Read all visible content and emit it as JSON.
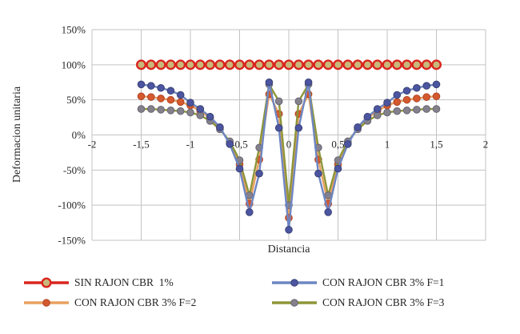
{
  "chart_data": {
    "type": "line",
    "title": "",
    "xlabel": "Distancia",
    "ylabel": "Deformacion unitaria",
    "xlim": [
      -2,
      2
    ],
    "ylim": [
      -150,
      150
    ],
    "grid": true,
    "legend_position": "bottom",
    "x_ticks": [
      {
        "value": -2,
        "label": "-2"
      },
      {
        "value": -1.5,
        "label": "-1,5"
      },
      {
        "value": -1,
        "label": "-1"
      },
      {
        "value": -0.5,
        "label": "-0,5"
      },
      {
        "value": 0,
        "label": "0"
      },
      {
        "value": 0.5,
        "label": "0,5"
      },
      {
        "value": 1,
        "label": "1"
      },
      {
        "value": 1.5,
        "label": "1,5"
      },
      {
        "value": 2,
        "label": "2"
      }
    ],
    "y_ticks": [
      {
        "value": 150,
        "label": "150%"
      },
      {
        "value": 100,
        "label": "100%"
      },
      {
        "value": 50,
        "label": "50%"
      },
      {
        "value": 0,
        "label": "0%"
      },
      {
        "value": -50,
        "label": "-50%"
      },
      {
        "value": -100,
        "label": "-100%"
      },
      {
        "value": -150,
        "label": "-150%"
      }
    ],
    "x": [
      -1.5,
      -1.4,
      -1.3,
      -1.2,
      -1.1,
      -1.0,
      -0.9,
      -0.8,
      -0.7,
      -0.6,
      -0.5,
      -0.4,
      -0.3,
      -0.2,
      -0.1,
      0,
      0.1,
      0.2,
      0.3,
      0.4,
      0.5,
      0.6,
      0.7,
      0.8,
      0.9,
      1.0,
      1.1,
      1.2,
      1.3,
      1.4,
      1.5
    ],
    "series": [
      {
        "name": "SIN RAJON CBR  1%",
        "line_color": "#d9251d",
        "marker_fill": "#c9b87c",
        "marker_stroke": "#d9251d",
        "marker_radius": 5.3,
        "marker_stroke_width": 2.4,
        "line_width": 2.6,
        "values": [
          100,
          100,
          100,
          100,
          100,
          100,
          100,
          100,
          100,
          100,
          100,
          100,
          100,
          100,
          100,
          100,
          100,
          100,
          100,
          100,
          100,
          100,
          100,
          100,
          100,
          100,
          100,
          100,
          100,
          100,
          100
        ]
      },
      {
        "name": "CON RAJON CBR 3% F=1",
        "line_color": "#6d86c3",
        "marker_fill": "#4c55a1",
        "marker_stroke": "#3a4273",
        "marker_radius": 4.3,
        "marker_stroke_width": 1,
        "line_width": 2.4,
        "values": [
          72,
          70,
          67,
          63,
          57,
          46,
          37,
          26,
          11,
          -13,
          -48,
          -110,
          -55,
          75,
          10,
          -135,
          10,
          75,
          -55,
          -110,
          -48,
          -13,
          11,
          26,
          37,
          46,
          57,
          63,
          67,
          70,
          72
        ]
      },
      {
        "name": "CON RAJON CBR 3% F=2",
        "line_color": "#e9a160",
        "marker_fill": "#d4592e",
        "marker_stroke": "#b14427",
        "marker_radius": 4.3,
        "marker_stroke_width": 1,
        "line_width": 2.4,
        "values": [
          55,
          54,
          52,
          50,
          47,
          42,
          34,
          24,
          10,
          -11,
          -42,
          -98,
          -35,
          58,
          30,
          -118,
          30,
          58,
          -35,
          -98,
          -42,
          -11,
          10,
          24,
          34,
          42,
          47,
          50,
          52,
          54,
          55
        ]
      },
      {
        "name": "CON RAJON CBR 3% F=3",
        "line_color": "#8d9639",
        "marker_fill": "#84818d",
        "marker_stroke": "#686573",
        "marker_radius": 4.3,
        "marker_stroke_width": 1,
        "line_width": 2.4,
        "values": [
          37,
          37,
          36,
          35,
          34,
          32,
          28,
          20,
          8,
          -9,
          -36,
          -86,
          -18,
          72,
          48,
          -100,
          48,
          72,
          -18,
          -86,
          -36,
          -9,
          8,
          20,
          28,
          32,
          34,
          35,
          36,
          37,
          37
        ]
      }
    ],
    "colors": {
      "grid": "#c3c3c3",
      "text": "#262626",
      "background": "#ffffff"
    }
  }
}
